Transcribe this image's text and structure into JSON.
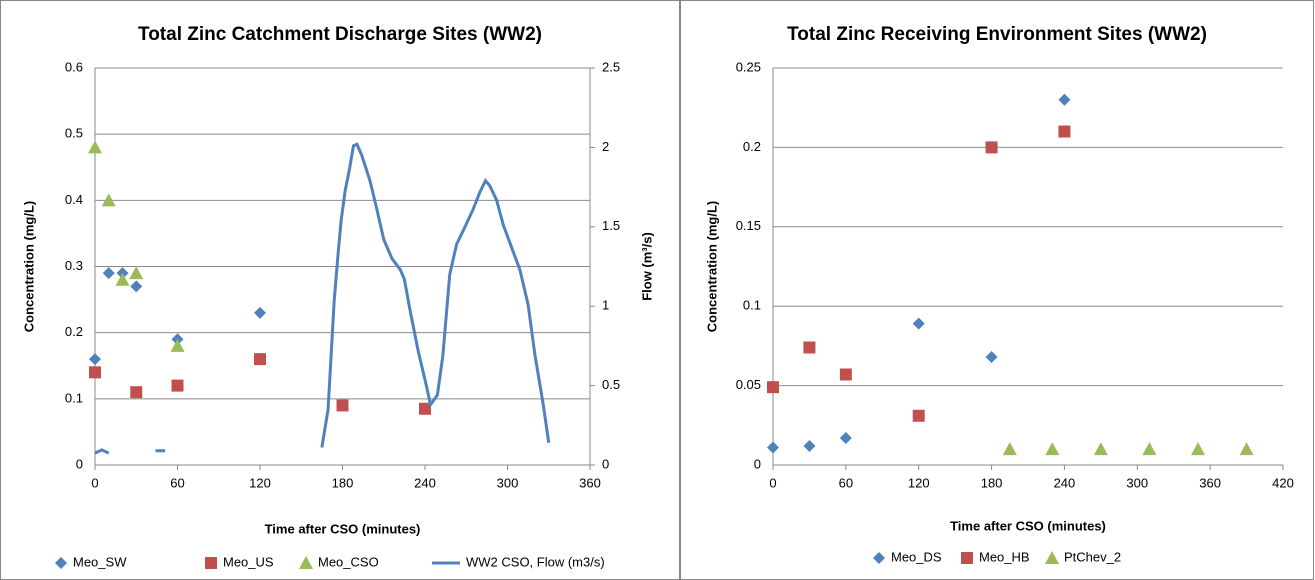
{
  "chart_data": [
    {
      "type": "scatter",
      "title": "Total Zinc Catchment Discharge Sites (WW2)",
      "xlabel": "Time after CSO (minutes)",
      "ylabel": "Concentration (mg/L)",
      "y2label": "Flow (m³/s)",
      "xlim": [
        0,
        360
      ],
      "xticks": [
        0,
        60,
        120,
        180,
        240,
        300,
        360
      ],
      "ylim": [
        0,
        0.6
      ],
      "yticks": [
        0,
        0.1,
        0.2,
        0.3,
        0.4,
        0.5,
        0.6
      ],
      "y2lim": [
        0,
        2.5
      ],
      "y2ticks": [
        0,
        0.5,
        1,
        1.5,
        2,
        2.5
      ],
      "grid": true,
      "legend": "bottom",
      "series": [
        {
          "name": "Meo_SW",
          "color": "#4f81bd",
          "marker": "diamond",
          "x": [
            0,
            10,
            20,
            30,
            60,
            120
          ],
          "values": [
            0.16,
            0.29,
            0.29,
            0.27,
            0.19,
            0.23
          ]
        },
        {
          "name": "Meo_US",
          "color": "#c0504d",
          "marker": "square",
          "x": [
            0,
            30,
            60,
            120,
            180,
            240
          ],
          "values": [
            0.14,
            0.11,
            0.12,
            0.16,
            0.09,
            0.085
          ]
        },
        {
          "name": "Meo_CSO",
          "color": "#9bbb59",
          "marker": "triangle",
          "x": [
            0,
            10,
            20,
            30,
            60
          ],
          "values": [
            0.48,
            0.4,
            0.28,
            0.29,
            0.18
          ]
        },
        {
          "name": "WW2 CSO, Flow (m3/s)",
          "color": "#4f81bd",
          "type": "line",
          "axis": "y2",
          "x": [
            0,
            5,
            10,
            12,
            44,
            51,
            55,
            165,
            169.5,
            174,
            177,
            179,
            182,
            185,
            188,
            190.5,
            194,
            200,
            205,
            210,
            216,
            222,
            225,
            229,
            235,
            241,
            244,
            249,
            253,
            258,
            263,
            268,
            275,
            280,
            284,
            287,
            292,
            297,
            303,
            309,
            315,
            320,
            326,
            330
          ],
          "values": [
            0.075,
            0.095,
            0.075,
            null,
            0.09,
            0.09,
            null,
            0.11,
            0.35,
            1.04,
            1.35,
            1.54,
            1.73,
            1.86,
            2.01,
            2.02,
            1.95,
            1.79,
            1.61,
            1.42,
            1.3,
            1.23,
            1.17,
            0.98,
            0.72,
            0.5,
            0.38,
            0.44,
            0.69,
            1.2,
            1.39,
            1.48,
            1.61,
            1.72,
            1.79,
            1.76,
            1.67,
            1.51,
            1.37,
            1.23,
            1.01,
            0.69,
            0.38,
            0.14
          ]
        }
      ]
    },
    {
      "type": "scatter",
      "title": "Total Zinc Receiving Environment Sites (WW2)",
      "xlabel": "Time after CSO (minutes)",
      "ylabel": "Concentration (mg/L)",
      "xlim": [
        0,
        420
      ],
      "xticks": [
        0,
        60,
        120,
        180,
        240,
        300,
        360,
        420
      ],
      "ylim": [
        0,
        0.25
      ],
      "yticks": [
        0,
        0.05,
        0.1,
        0.15,
        0.2,
        0.25
      ],
      "grid": true,
      "legend": "bottom",
      "series": [
        {
          "name": "Meo_DS",
          "color": "#4f81bd",
          "marker": "diamond",
          "x": [
            0,
            30,
            60,
            120,
            180,
            240
          ],
          "values": [
            0.011,
            0.012,
            0.017,
            0.089,
            0.068,
            0.23
          ]
        },
        {
          "name": "Meo_HB",
          "color": "#c0504d",
          "marker": "square",
          "x": [
            0,
            30,
            60,
            120,
            180,
            240
          ],
          "values": [
            0.049,
            0.074,
            0.057,
            0.031,
            0.2,
            0.21
          ]
        },
        {
          "name": "PtChev_2",
          "color": "#9bbb59",
          "marker": "triangle",
          "x": [
            195,
            230,
            270,
            310,
            350,
            390
          ],
          "values": [
            0.01,
            0.01,
            0.01,
            0.01,
            0.01,
            0.01
          ]
        }
      ]
    }
  ]
}
